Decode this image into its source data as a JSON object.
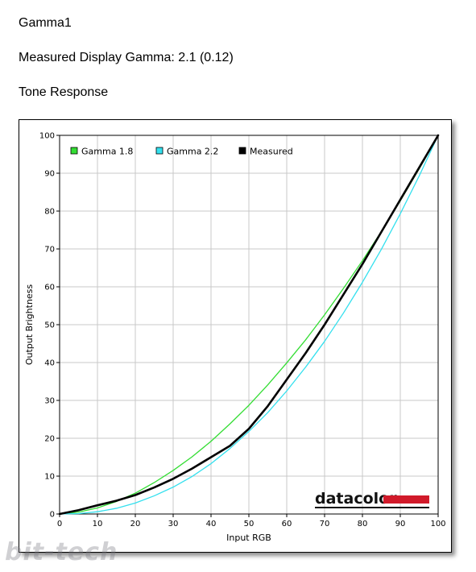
{
  "page": {
    "title": "Gamma1",
    "gamma_line": "Measured Display Gamma: 2.1 (0.12)",
    "section": "Tone Response"
  },
  "watermark": "bit-tech",
  "logo": {
    "text": "datacolor",
    "bar_color": "#d11a2a"
  },
  "chart_data": {
    "type": "line",
    "title": "",
    "xlabel": "Input RGB",
    "ylabel": "Output Brightness",
    "xlim": [
      0,
      100
    ],
    "ylim": [
      0,
      100
    ],
    "xticks": [
      0,
      10,
      20,
      30,
      40,
      50,
      60,
      70,
      80,
      90,
      100
    ],
    "yticks": [
      0,
      10,
      20,
      30,
      40,
      50,
      60,
      70,
      80,
      90,
      100
    ],
    "grid": true,
    "legend_position": "top-left",
    "series": [
      {
        "name": "Gamma 1.8",
        "color": "#33dd33",
        "x": [
          0,
          5,
          10,
          15,
          20,
          25,
          30,
          35,
          40,
          45,
          50,
          55,
          60,
          65,
          70,
          75,
          80,
          85,
          90,
          95,
          100
        ],
        "y": [
          0,
          0.5,
          1.6,
          3.3,
          5.5,
          8.3,
          11.5,
          15.1,
          19.2,
          23.8,
          28.7,
          34.1,
          39.9,
          46.0,
          52.6,
          59.6,
          66.9,
          74.6,
          82.7,
          91.2,
          100
        ]
      },
      {
        "name": "Gamma 2.2",
        "color": "#33e0ee",
        "x": [
          0,
          5,
          10,
          15,
          20,
          25,
          30,
          35,
          40,
          45,
          50,
          55,
          60,
          65,
          70,
          75,
          80,
          85,
          90,
          95,
          100
        ],
        "y": [
          0,
          0.1,
          0.6,
          1.5,
          2.9,
          4.8,
          7.1,
          9.9,
          13.3,
          17.3,
          21.8,
          26.8,
          32.5,
          38.8,
          45.6,
          53.1,
          61.2,
          69.9,
          79.3,
          89.3,
          100
        ]
      },
      {
        "name": "Measured",
        "color": "#000000",
        "x": [
          0,
          5,
          10,
          15,
          20,
          25,
          30,
          35,
          40,
          45,
          50,
          55,
          60,
          65,
          70,
          75,
          80,
          85,
          90,
          95,
          100
        ],
        "y": [
          0,
          1.0,
          2.3,
          3.5,
          5.0,
          7.0,
          9.3,
          12.0,
          15.0,
          18.0,
          22.5,
          28.5,
          35.5,
          42.5,
          50.0,
          58.0,
          66.0,
          74.5,
          83.0,
          91.5,
          100
        ]
      }
    ]
  }
}
